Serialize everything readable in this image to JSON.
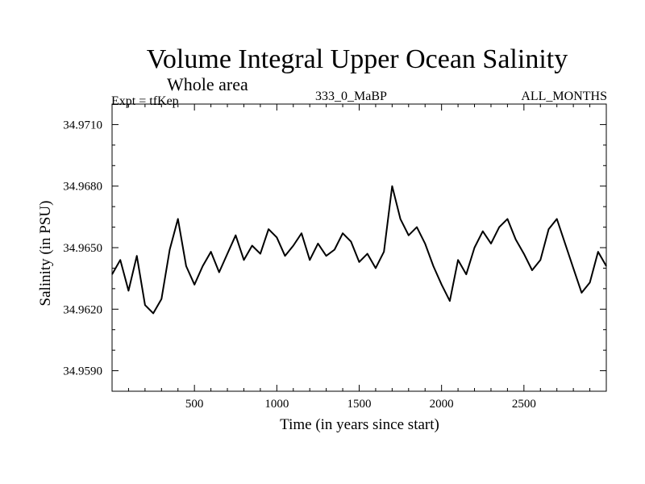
{
  "header": {
    "title": "Volume Integral Upper Ocean Salinity",
    "subtitle": "Whole area",
    "experiment": "Expt = tfKep",
    "run": "333_0_MaBP",
    "months": "ALL_MONTHS"
  },
  "chart_data": {
    "type": "line",
    "title": "Volume Integral Upper Ocean Salinity",
    "subtitle": "Whole area",
    "xlabel": "Time (in years since start)",
    "ylabel": "Salinity (in PSU)",
    "xlim": [
      0,
      3000
    ],
    "ylim": [
      34.958,
      34.972
    ],
    "xticks": [
      500,
      1000,
      1500,
      2000,
      2500
    ],
    "yticks": [
      34.959,
      34.962,
      34.965,
      34.968,
      34.971
    ],
    "ytick_labels": [
      "34.9590",
      "34.9620",
      "34.9650",
      "34.9680",
      "34.9710"
    ],
    "grid": false,
    "line_color": "#000000",
    "series": [
      {
        "x": [
          0,
          50,
          100,
          150,
          200,
          250,
          300,
          350,
          400,
          450,
          500,
          550,
          600,
          650,
          700,
          750,
          800,
          850,
          900,
          950,
          1000,
          1050,
          1100,
          1150,
          1200,
          1250,
          1300,
          1350,
          1400,
          1450,
          1500,
          1550,
          1600,
          1650,
          1700,
          1750,
          1800,
          1850,
          1900,
          1950,
          2000,
          2050,
          2100,
          2150,
          2200,
          2250,
          2300,
          2350,
          2400,
          2450,
          2500,
          2550,
          2600,
          2650,
          2700,
          2750,
          2800,
          2850,
          2900,
          2950,
          3000
        ],
        "values": [
          34.9637,
          34.9644,
          34.9629,
          34.9646,
          34.9622,
          34.9618,
          34.9625,
          34.9649,
          34.9664,
          34.9641,
          34.9632,
          34.9641,
          34.9648,
          34.9638,
          34.9647,
          34.9656,
          34.9644,
          34.9651,
          34.9647,
          34.9659,
          34.9655,
          34.9646,
          34.9651,
          34.9657,
          34.9644,
          34.9652,
          34.9646,
          34.9649,
          34.9657,
          34.9653,
          34.9643,
          34.9647,
          34.964,
          34.9648,
          34.968,
          34.9664,
          34.9656,
          34.966,
          34.9652,
          34.9641,
          34.9632,
          34.9624,
          34.9644,
          34.9637,
          34.965,
          34.9658,
          34.9652,
          34.966,
          34.9664,
          34.9654,
          34.9647,
          34.9639,
          34.9644,
          34.9659,
          34.9664,
          34.9652,
          34.964,
          34.9628,
          34.9633,
          34.9648,
          34.9641
        ]
      }
    ]
  }
}
